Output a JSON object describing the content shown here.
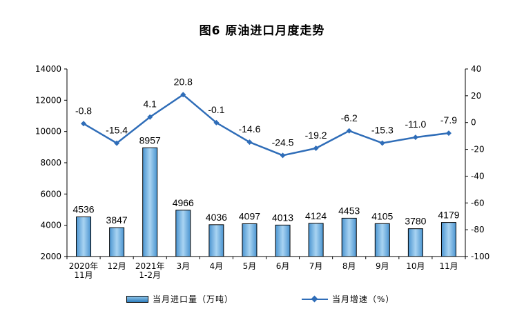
{
  "title": "图6  原油进口月度走势",
  "colors": {
    "bar": "#6aaee0",
    "bar_stroke": "#000000",
    "line": "#2f6db8",
    "axis": "#000000"
  },
  "legend": {
    "bar_label": "当月进口量（万吨）",
    "line_label": "当月增速（%）"
  },
  "chart_data": {
    "type": "bar",
    "title": "图6  原油进口月度走势",
    "categories": [
      [
        "2020年",
        "11月"
      ],
      [
        "12月"
      ],
      [
        "2021年",
        "1-2月"
      ],
      [
        "3月"
      ],
      [
        "4月"
      ],
      [
        "5月"
      ],
      [
        "6月"
      ],
      [
        "7月"
      ],
      [
        "8月"
      ],
      [
        "9月"
      ],
      [
        "10月"
      ],
      [
        "11月"
      ]
    ],
    "series": [
      {
        "name": "当月进口量（万吨）",
        "type": "bar",
        "axis": "left",
        "values": [
          4536,
          3847,
          8957,
          4966,
          4036,
          4097,
          4013,
          4124,
          4453,
          4105,
          3780,
          4179
        ]
      },
      {
        "name": "当月增速（%）",
        "type": "line",
        "axis": "right",
        "values": [
          -0.8,
          -15.4,
          4.1,
          20.8,
          -0.1,
          -14.6,
          -24.5,
          -19.2,
          -6.2,
          -15.3,
          -11.0,
          -7.9
        ]
      }
    ],
    "y_left": {
      "min": 2000,
      "max": 14000,
      "ticks": [
        2000,
        4000,
        6000,
        8000,
        10000,
        12000,
        14000
      ]
    },
    "y_right": {
      "min": -100,
      "max": 40,
      "ticks": [
        -100,
        -80,
        -60,
        -40,
        -20,
        0,
        20,
        40
      ]
    },
    "legend_position": "bottom",
    "grid": false
  }
}
